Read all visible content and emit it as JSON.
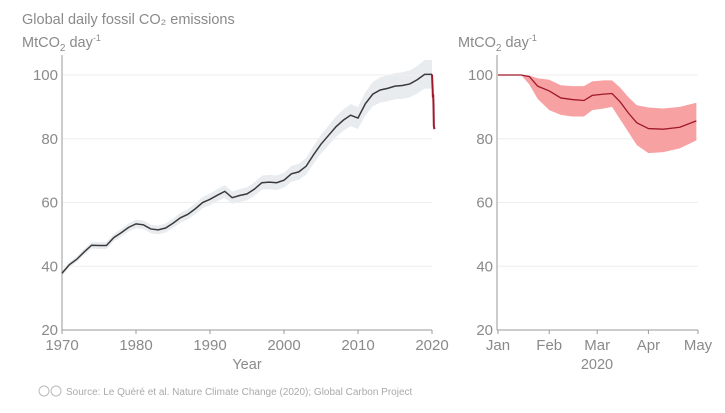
{
  "title": "Global daily fossil CO₂ emissions",
  "footer": {
    "source": "Source: Le Quéré et al. Nature Climate Change (2020); Global Carbon Project",
    "license_icon": "creative-commons-by-icon"
  },
  "colors": {
    "annual_line": "#3a3a3a",
    "annual_band": "#e8ecef",
    "daily_line": "#a0182a",
    "daily_band": "#f7a1a3",
    "grid": "#eeeeee",
    "axis": "#999999"
  },
  "chart_data": [
    {
      "type": "line",
      "ylabel_main": "MtCO",
      "ylabel_sub": "2",
      "ylabel_rest": " day",
      "ylabel_sup": "-1",
      "xlabel": "Year",
      "xlim": [
        1970,
        2020.4
      ],
      "ylim": [
        20,
        105
      ],
      "xticks": [
        "1970",
        "1980",
        "1990",
        "2000",
        "2010",
        "2020"
      ],
      "yticks": [
        "20",
        "40",
        "60",
        "80",
        "100"
      ],
      "grid": true,
      "band_relative_halfwidth": [
        0.02,
        0.045
      ],
      "series": [
        {
          "x": [
            1970,
            1971,
            1972,
            1973,
            1974,
            1975,
            1976,
            1977,
            1978,
            1979,
            1980,
            1981,
            1982,
            1983,
            1984,
            1985,
            1986,
            1987,
            1988,
            1989,
            1990,
            1991,
            1992,
            1993,
            1994,
            1995,
            1996,
            1997,
            1998,
            1999,
            2000,
            2001,
            2002,
            2003,
            2004,
            2005,
            2006,
            2007,
            2008,
            2009,
            2010,
            2011,
            2012,
            2013,
            2014,
            2015,
            2016,
            2017,
            2018,
            2019,
            2020
          ],
          "values": [
            37.8,
            40.5,
            42.2,
            44.5,
            46.6,
            46.5,
            46.5,
            49,
            50.5,
            52.2,
            53.3,
            53.0,
            51.7,
            51.4,
            52.0,
            53.5,
            55.2,
            56.3,
            58,
            60,
            61,
            62.3,
            63.5,
            61.5,
            62.2,
            62.7,
            64.2,
            66.2,
            66.4,
            66.2,
            67,
            69,
            69.6,
            71.4,
            75,
            78.3,
            81,
            83.7,
            85.8,
            87.4,
            86.5,
            91,
            94,
            95.3,
            95.8,
            96.5,
            96.7,
            97.2,
            98.5,
            100.2,
            100.2
          ]
        },
        {
          "x": [
            2020.0,
            2020.08,
            2020.12,
            2020.16,
            2020.2,
            2020.25,
            2020.33
          ],
          "values": [
            100.2,
            96,
            93,
            94,
            91,
            84,
            83
          ]
        }
      ]
    },
    {
      "type": "area",
      "ylabel_main": "MtCO",
      "ylabel_sub": "2",
      "ylabel_rest": " day",
      "ylabel_sup": "-1",
      "xlabel": "2020",
      "xticks": [
        "Jan",
        "Feb",
        "Mar",
        "Apr",
        "May"
      ],
      "yticks": [
        "20",
        "40",
        "60",
        "80",
        "100"
      ],
      "ylim": [
        20,
        105
      ],
      "grid": true,
      "x": [
        "2020-01-01",
        "2020-01-15",
        "2020-01-20",
        "2020-01-25",
        "2020-02-01",
        "2020-02-08",
        "2020-02-15",
        "2020-02-22",
        "2020-02-27",
        "2020-03-05",
        "2020-03-10",
        "2020-03-15",
        "2020-03-20",
        "2020-03-25",
        "2020-04-01",
        "2020-04-10",
        "2020-04-20",
        "2020-04-30"
      ],
      "mean": [
        100,
        100,
        99.5,
        96.5,
        95,
        92.8,
        92.3,
        92,
        93.6,
        94,
        94.2,
        91.5,
        88,
        85,
        83.2,
        83,
        83.6,
        85.6
      ],
      "lower": [
        100,
        100,
        97,
        92.5,
        89,
        87.5,
        87,
        87,
        89,
        89.5,
        90,
        86,
        82,
        78,
        75.5,
        75.8,
        77,
        79.5
      ],
      "upper": [
        100,
        100,
        99.8,
        99,
        98.5,
        96.8,
        96.5,
        96.5,
        98,
        98.3,
        98.3,
        96,
        93,
        90.5,
        89.8,
        89.5,
        90,
        91.3
      ]
    }
  ]
}
